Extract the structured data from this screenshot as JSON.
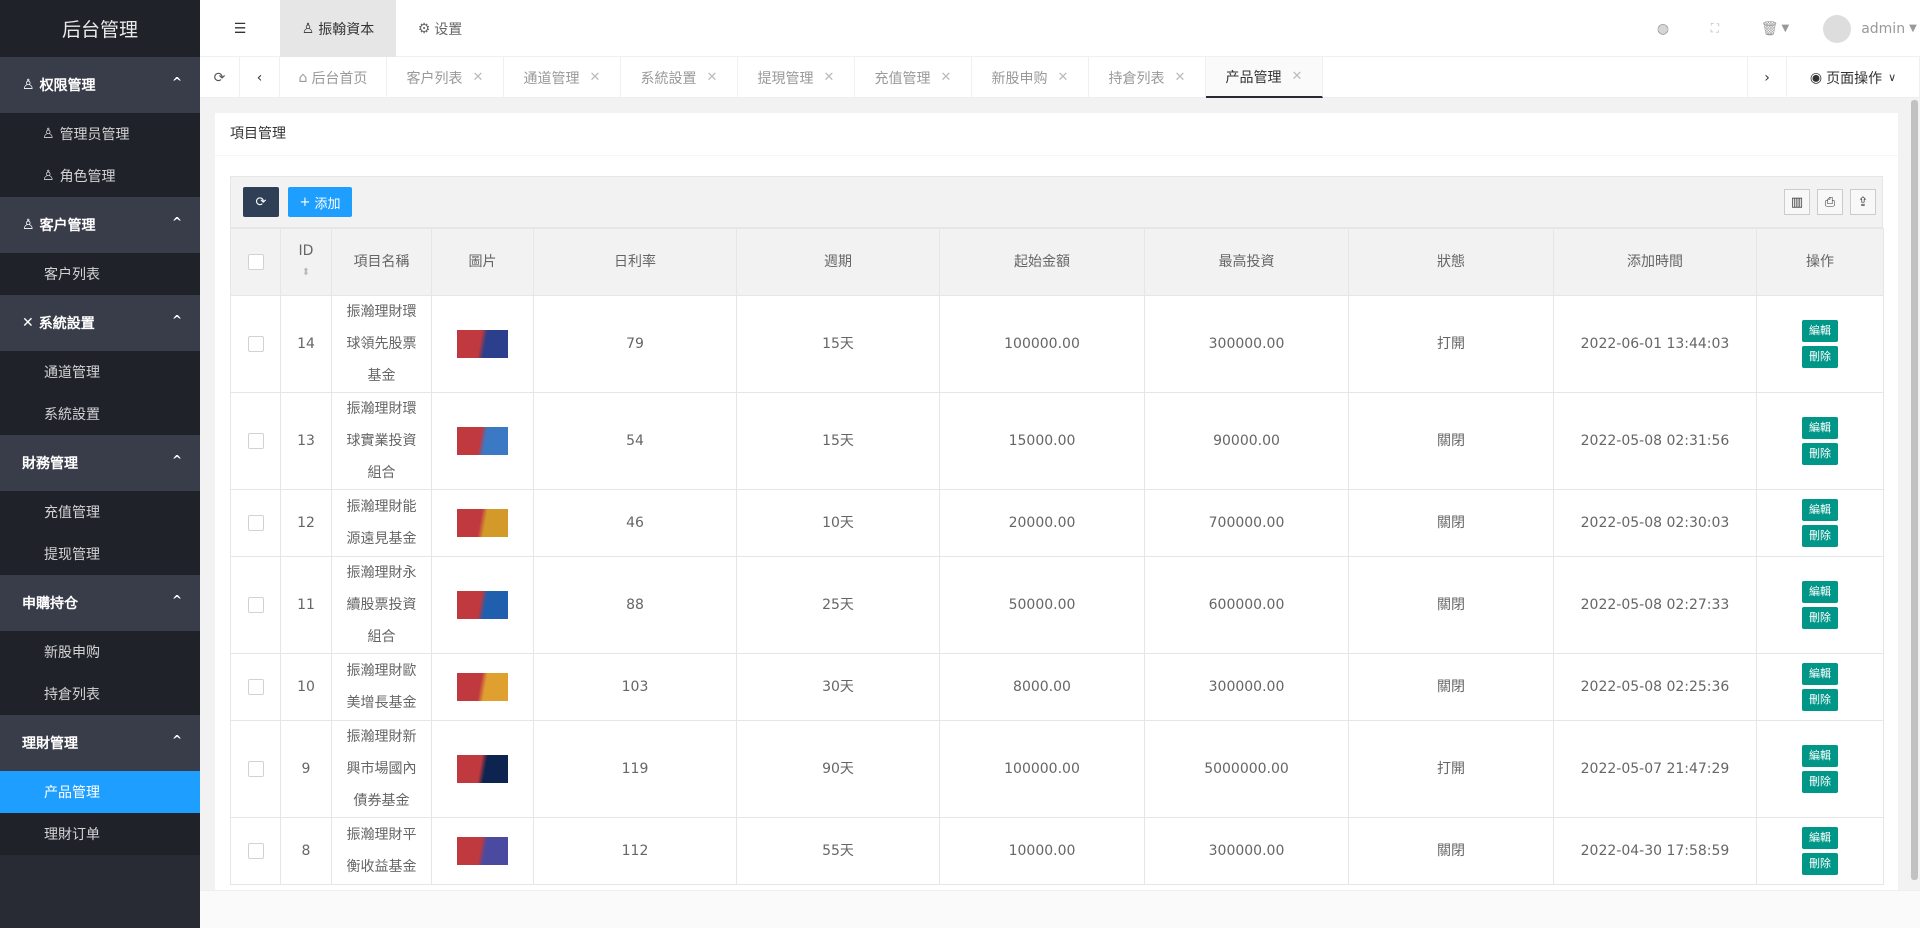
{
  "sidebar": {
    "title": "后台管理",
    "groups": [
      {
        "label": "权限管理",
        "icon": "users-icon",
        "items": [
          "管理员管理",
          "角色管理"
        ]
      },
      {
        "label": "客户管理",
        "icon": "user-icon",
        "items": [
          "客户列表"
        ]
      },
      {
        "label": "系統設置",
        "icon": "tools-icon",
        "items": [
          "通道管理",
          "系統設置"
        ]
      },
      {
        "label": "財務管理",
        "icon": "",
        "items": [
          "充值管理",
          "提现管理"
        ]
      },
      {
        "label": "申購持仓",
        "icon": "",
        "items": [
          "新股申购",
          "持倉列表"
        ]
      },
      {
        "label": "理財管理",
        "icon": "",
        "items": [
          "产品管理",
          "理財订单"
        ]
      }
    ],
    "active": "产品管理"
  },
  "header": {
    "company": "振翰資本",
    "settings": "设置",
    "user": "admin"
  },
  "tabs": {
    "home": "后台首页",
    "items": [
      "客户列表",
      "通道管理",
      "系統設置",
      "提現管理",
      "充值管理",
      "新股申购",
      "持倉列表",
      "产品管理"
    ],
    "active": "产品管理",
    "page_ops": "页面操作",
    "close": "✕"
  },
  "card": {
    "title": "項目管理",
    "add_label": "添加"
  },
  "table": {
    "columns": [
      "ID",
      "項目名稱",
      "圖片",
      "日利率",
      "週期",
      "起始金額",
      "最高投資",
      "狀態",
      "添加時間",
      "操作"
    ],
    "edit_label": "編輯",
    "delete_label": "刪除",
    "rows": [
      {
        "id": "14",
        "name": "振瀚理財環球領先股票基金",
        "rate": "79",
        "period": "15天",
        "min": "100000.00",
        "max": "300000.00",
        "status": "打開",
        "time": "2022-06-01 13:44:03",
        "lines": 3,
        "img": [
          "#c0393f",
          "#2b3f8c"
        ]
      },
      {
        "id": "13",
        "name": "振瀚理財環球實業投資組合",
        "rate": "54",
        "period": "15天",
        "min": "15000.00",
        "max": "90000.00",
        "status": "關閉",
        "time": "2022-05-08 02:31:56",
        "lines": 3,
        "img": [
          "#c0393f",
          "#3b79c5"
        ]
      },
      {
        "id": "12",
        "name": "振瀚理財能源遠見基金",
        "rate": "46",
        "period": "10天",
        "min": "20000.00",
        "max": "700000.00",
        "status": "關閉",
        "time": "2022-05-08 02:30:03",
        "lines": 2,
        "img": [
          "#c0393f",
          "#d39a2a"
        ]
      },
      {
        "id": "11",
        "name": "振瀚理財永續股票投資組合",
        "rate": "88",
        "period": "25天",
        "min": "50000.00",
        "max": "600000.00",
        "status": "關閉",
        "time": "2022-05-08 02:27:33",
        "lines": 3,
        "img": [
          "#c0393f",
          "#1f5fae"
        ]
      },
      {
        "id": "10",
        "name": "振瀚理財歐美增長基金",
        "rate": "103",
        "period": "30天",
        "min": "8000.00",
        "max": "300000.00",
        "status": "關閉",
        "time": "2022-05-08 02:25:36",
        "lines": 2,
        "img": [
          "#c0393f",
          "#e0a030"
        ]
      },
      {
        "id": "9",
        "name": "振瀚理財新興市場國內債券基金",
        "rate": "119",
        "period": "90天",
        "min": "100000.00",
        "max": "5000000.00",
        "status": "打開",
        "time": "2022-05-07 21:47:29",
        "lines": 3,
        "img": [
          "#c0393f",
          "#0e2450"
        ]
      },
      {
        "id": "8",
        "name": "振瀚理財平衡收益基金",
        "rate": "112",
        "period": "55天",
        "min": "10000.00",
        "max": "300000.00",
        "status": "關閉",
        "time": "2022-04-30 17:58:59",
        "lines": 2,
        "img": [
          "#c0393f",
          "#4a4ba0"
        ]
      }
    ]
  },
  "colors": {
    "accent": "#1e9fff",
    "action": "#009688",
    "sidebar": "#282b33"
  }
}
